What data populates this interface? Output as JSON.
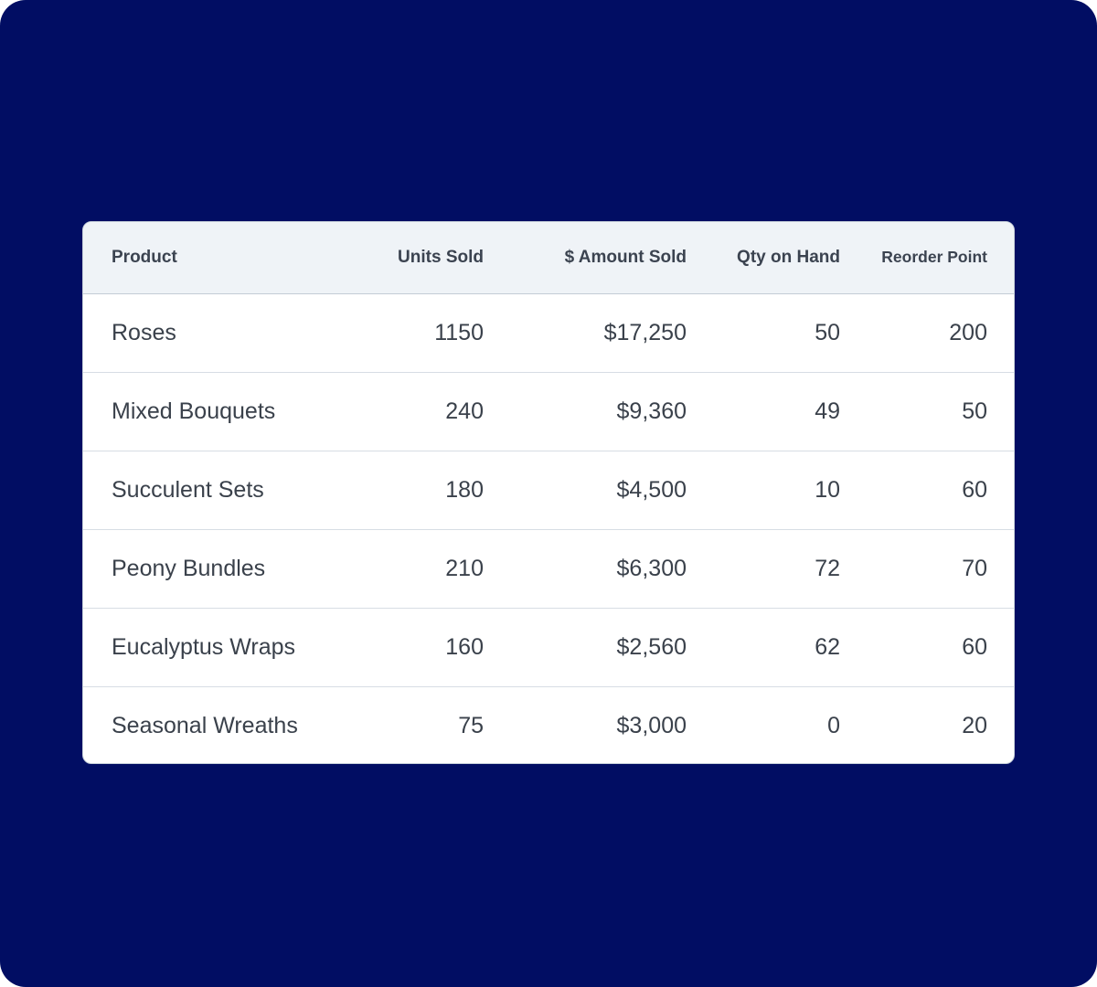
{
  "table": {
    "headers": {
      "product": "Product",
      "units_sold": "Units Sold",
      "amount_sold": "$ Amount Sold",
      "qty_on_hand": "Qty on Hand",
      "reorder_point": "Reorder Point"
    },
    "rows": [
      {
        "product": "Roses",
        "units_sold": "1150",
        "amount_sold": "$17,250",
        "qty_on_hand": "50",
        "reorder_point": "200"
      },
      {
        "product": "Mixed Bouquets",
        "units_sold": "240",
        "amount_sold": "$9,360",
        "qty_on_hand": "49",
        "reorder_point": "50"
      },
      {
        "product": "Succulent Sets",
        "units_sold": "180",
        "amount_sold": "$4,500",
        "qty_on_hand": "10",
        "reorder_point": "60"
      },
      {
        "product": "Peony Bundles",
        "units_sold": "210",
        "amount_sold": "$6,300",
        "qty_on_hand": "72",
        "reorder_point": "70"
      },
      {
        "product": "Eucalyptus Wraps",
        "units_sold": "160",
        "amount_sold": "$2,560",
        "qty_on_hand": "62",
        "reorder_point": "60"
      },
      {
        "product": "Seasonal Wreaths",
        "units_sold": "75",
        "amount_sold": "$3,000",
        "qty_on_hand": "0",
        "reorder_point": "20"
      }
    ]
  },
  "colors": {
    "background": "#010d63",
    "card": "#ffffff",
    "header_row": "#eff3f7",
    "text": "#3a414b"
  }
}
